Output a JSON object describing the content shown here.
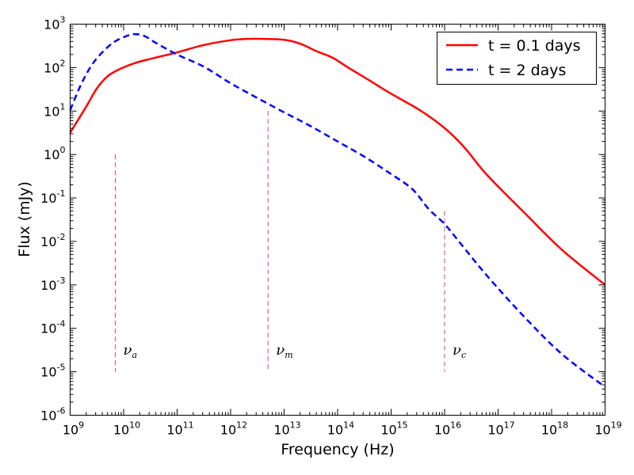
{
  "chart_data": {
    "type": "line",
    "title": "",
    "xlabel": "Frequency (Hz)",
    "ylabel": "Flux (mJy)",
    "x_scale": "log",
    "y_scale": "log",
    "xlim_exp": [
      9,
      19
    ],
    "ylim_exp": [
      -6,
      3
    ],
    "x_ticks": [
      {
        "base": "10",
        "exp": "9"
      },
      {
        "base": "10",
        "exp": "10"
      },
      {
        "base": "10",
        "exp": "11"
      },
      {
        "base": "10",
        "exp": "12"
      },
      {
        "base": "10",
        "exp": "13"
      },
      {
        "base": "10",
        "exp": "14"
      },
      {
        "base": "10",
        "exp": "15"
      },
      {
        "base": "10",
        "exp": "16"
      },
      {
        "base": "10",
        "exp": "17"
      },
      {
        "base": "10",
        "exp": "18"
      },
      {
        "base": "10",
        "exp": "19"
      }
    ],
    "y_ticks": [
      {
        "base": "10",
        "exp": "-6"
      },
      {
        "base": "10",
        "exp": "-5"
      },
      {
        "base": "10",
        "exp": "-4"
      },
      {
        "base": "10",
        "exp": "-3"
      },
      {
        "base": "10",
        "exp": "-2"
      },
      {
        "base": "10",
        "exp": "-1"
      },
      {
        "base": "10",
        "exp": "0"
      },
      {
        "base": "10",
        "exp": "1"
      },
      {
        "base": "10",
        "exp": "2"
      },
      {
        "base": "10",
        "exp": "3"
      }
    ],
    "legend": "top-right",
    "series": [
      {
        "name": "t = 0.1 days",
        "color": "#ff0000",
        "style": "solid",
        "points_log10": [
          [
            9.0,
            0.5
          ],
          [
            9.3,
            1.1
          ],
          [
            9.5,
            1.52
          ],
          [
            9.7,
            1.8
          ],
          [
            9.9,
            1.95
          ],
          [
            10.2,
            2.1
          ],
          [
            10.5,
            2.2
          ],
          [
            11.0,
            2.35
          ],
          [
            11.5,
            2.52
          ],
          [
            12.0,
            2.63
          ],
          [
            12.3,
            2.66
          ],
          [
            12.6,
            2.66
          ],
          [
            13.0,
            2.64
          ],
          [
            13.3,
            2.55
          ],
          [
            13.6,
            2.38
          ],
          [
            13.9,
            2.23
          ],
          [
            14.2,
            2.0
          ],
          [
            14.6,
            1.7
          ],
          [
            15.0,
            1.4
          ],
          [
            15.5,
            1.05
          ],
          [
            15.8,
            0.8
          ],
          [
            16.1,
            0.5
          ],
          [
            16.4,
            0.12
          ],
          [
            16.8,
            -0.48
          ],
          [
            17.5,
            -1.35
          ],
          [
            18.2,
            -2.2
          ],
          [
            19.0,
            -3.0
          ]
        ]
      },
      {
        "name": "t = 2 days",
        "color": "#0000ff",
        "style": "dashed",
        "points_log10": [
          [
            9.0,
            1.02
          ],
          [
            9.2,
            1.6
          ],
          [
            9.4,
            2.05
          ],
          [
            9.6,
            2.35
          ],
          [
            9.8,
            2.57
          ],
          [
            10.0,
            2.7
          ],
          [
            10.2,
            2.77
          ],
          [
            10.4,
            2.72
          ],
          [
            10.6,
            2.57
          ],
          [
            11.0,
            2.3
          ],
          [
            11.5,
            2.02
          ],
          [
            12.0,
            1.64
          ],
          [
            12.5,
            1.3
          ],
          [
            13.0,
            0.97
          ],
          [
            13.5,
            0.65
          ],
          [
            14.0,
            0.3
          ],
          [
            14.5,
            -0.05
          ],
          [
            15.0,
            -0.45
          ],
          [
            15.4,
            -0.8
          ],
          [
            15.7,
            -1.25
          ],
          [
            16.0,
            -1.6
          ],
          [
            16.3,
            -2.05
          ],
          [
            16.8,
            -2.8
          ],
          [
            17.5,
            -3.75
          ],
          [
            18.2,
            -4.6
          ],
          [
            19.0,
            -5.35
          ]
        ]
      }
    ],
    "annotations": [
      {
        "symbol": "ν",
        "sub": "a",
        "x_log10": 9.845,
        "line_top_log10": 0.0,
        "line_bottom_log10": -5.0
      },
      {
        "symbol": "ν",
        "sub": "m",
        "x_log10": 12.7,
        "line_top_log10": 1.0,
        "line_bottom_log10": -5.0
      },
      {
        "symbol": "ν",
        "sub": "c",
        "x_log10": 16.0,
        "line_top_log10": -1.3,
        "line_bottom_log10": -5.0
      }
    ],
    "reference_line_color": "#cc4477"
  }
}
